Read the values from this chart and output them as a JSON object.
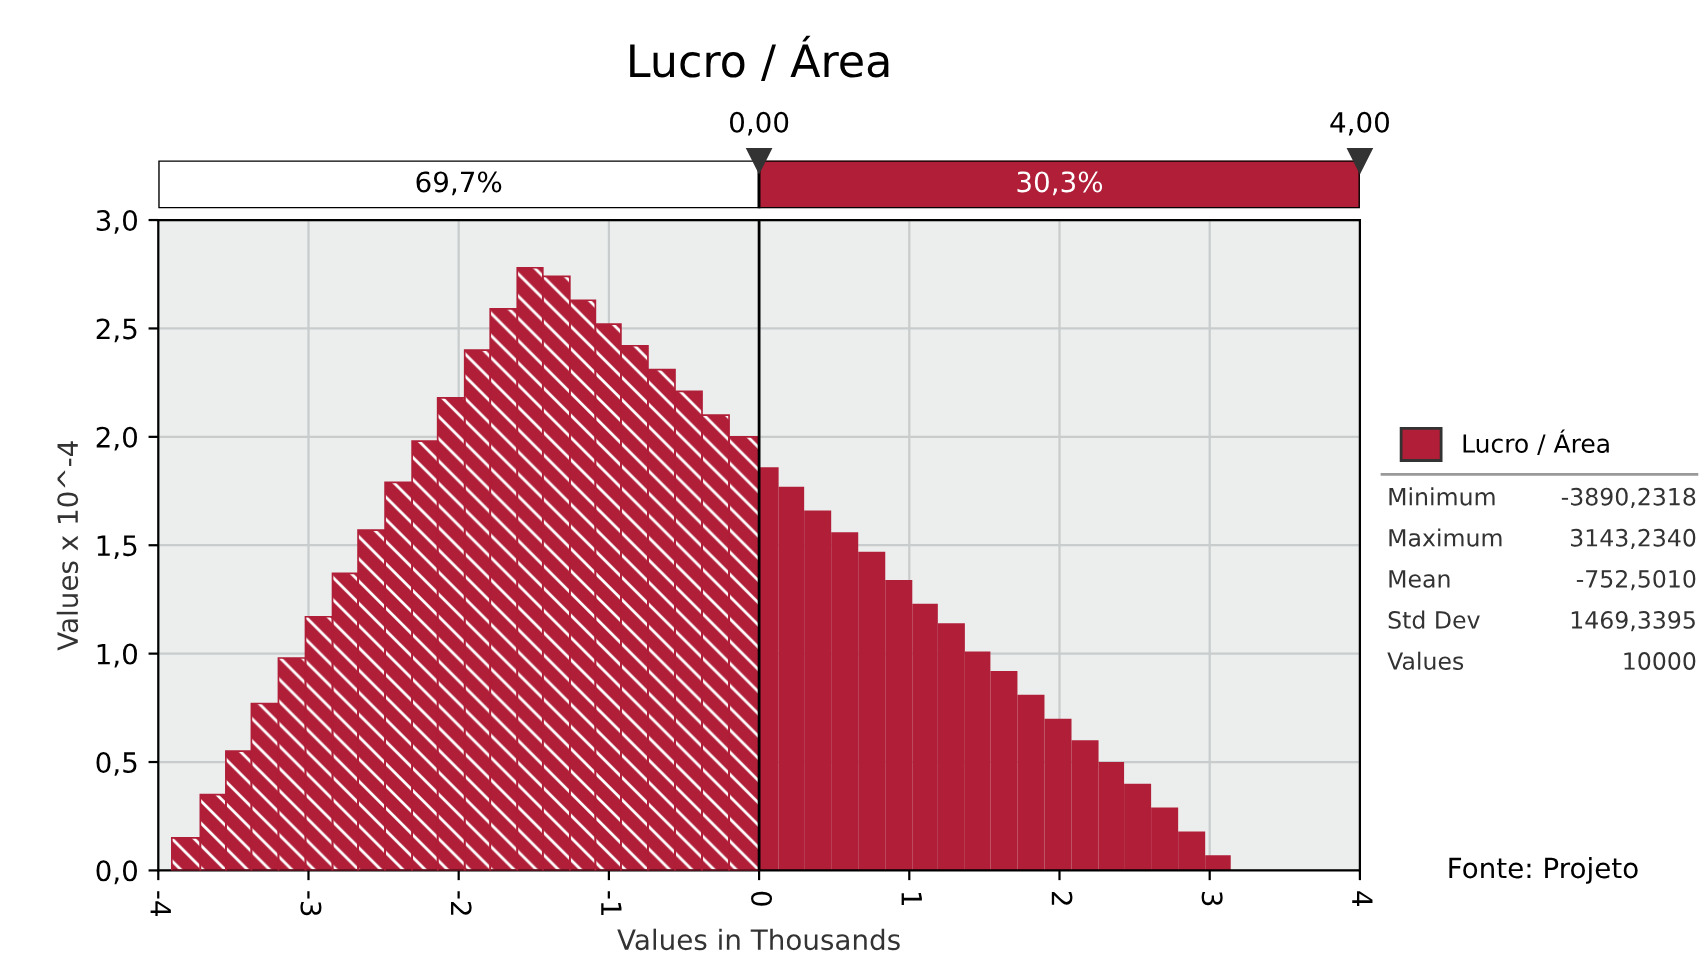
{
  "chart_data": {
    "type": "histogram",
    "title": "Lucro / Área",
    "xlabel": "Values in Thousands",
    "ylabel": "Values x 10^-4",
    "bins": [
      -3.91,
      -3.72,
      -3.55,
      -3.38,
      -3.2,
      -3.02,
      -2.84,
      -2.67,
      -2.49,
      -2.31,
      -2.14,
      -1.96,
      -1.79,
      -1.61,
      -1.44,
      -1.26,
      -1.09,
      -0.92,
      -0.74,
      -0.56,
      -0.38,
      -0.2,
      0,
      0.13,
      0.3,
      0.48,
      0.66,
      0.84,
      1.02,
      1.19,
      1.37,
      1.54,
      1.72,
      1.9,
      2.08,
      2.26,
      2.43,
      2.61,
      2.79,
      2.97,
      3.14
    ],
    "series": [
      {
        "name": "Lucro / Área",
        "color": "#b01e38",
        "values": [
          0.15,
          0.35,
          0.55,
          0.77,
          0.98,
          1.17,
          1.37,
          1.57,
          1.79,
          1.98,
          2.18,
          2.4,
          2.59,
          2.78,
          2.74,
          2.63,
          2.52,
          2.42,
          2.31,
          2.21,
          2.1,
          2.0,
          1.86,
          1.77,
          1.66,
          1.56,
          1.47,
          1.34,
          1.23,
          1.14,
          1.01,
          0.92,
          0.81,
          0.7,
          0.6,
          0.5,
          0.4,
          0.29,
          0.18,
          0.07
        ]
      }
    ],
    "xlim": [
      -4,
      4
    ],
    "xticks": [
      -4,
      -3,
      -2,
      -1,
      0,
      1,
      2,
      3,
      4
    ],
    "ylim": [
      0,
      3
    ],
    "yticks": [
      {
        "value": 0,
        "label": "0,0"
      },
      {
        "value": 0.5,
        "label": "0,5"
      },
      {
        "value": 1,
        "label": "1,0"
      },
      {
        "value": 1.5,
        "label": "1,5"
      },
      {
        "value": 2,
        "label": "2,0"
      },
      {
        "value": 2.5,
        "label": "2,5"
      },
      {
        "value": 3,
        "label": "3,0"
      }
    ],
    "x2lim": [
      -4,
      4
    ],
    "x2ticks": [
      {
        "value": 0,
        "label": "0,00"
      },
      {
        "value": 4,
        "label": "4,00"
      }
    ],
    "ref_lines": [
      {
        "axis": "x",
        "value": 0,
        "color": "#000000"
      }
    ],
    "annotations": [
      "69,7%",
      "30,3%",
      "Minimum",
      "-3890,2318",
      "Maximum",
      "3143,2340",
      "Mean",
      "-752,5010",
      "Std Dev",
      "1469,3395",
      "Values",
      "10000",
      "Fonte: Projeto"
    ],
    "grid": true,
    "legend": "right"
  }
}
